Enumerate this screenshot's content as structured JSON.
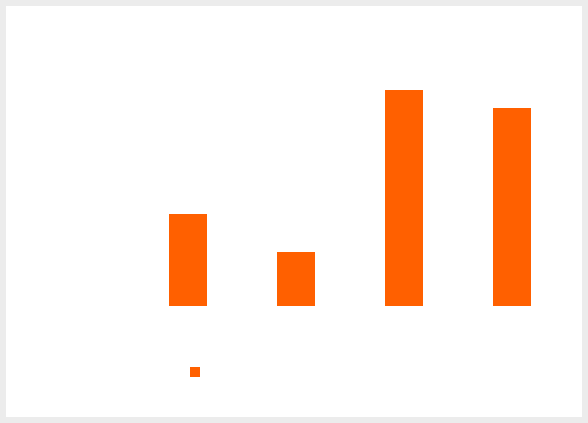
{
  "chart_data": {
    "type": "bar",
    "title": "",
    "xlabel": "",
    "ylabel": "",
    "categories": [
      "",
      "",
      "",
      ""
    ],
    "series": [
      {
        "name": "",
        "color": "#ff6000",
        "values": [
          2.3,
          1.35,
          5.4,
          4.95
        ]
      }
    ],
    "ylim": [
      0,
      6.5
    ],
    "grid": false,
    "legend": {
      "position": "bottom-left"
    }
  }
}
